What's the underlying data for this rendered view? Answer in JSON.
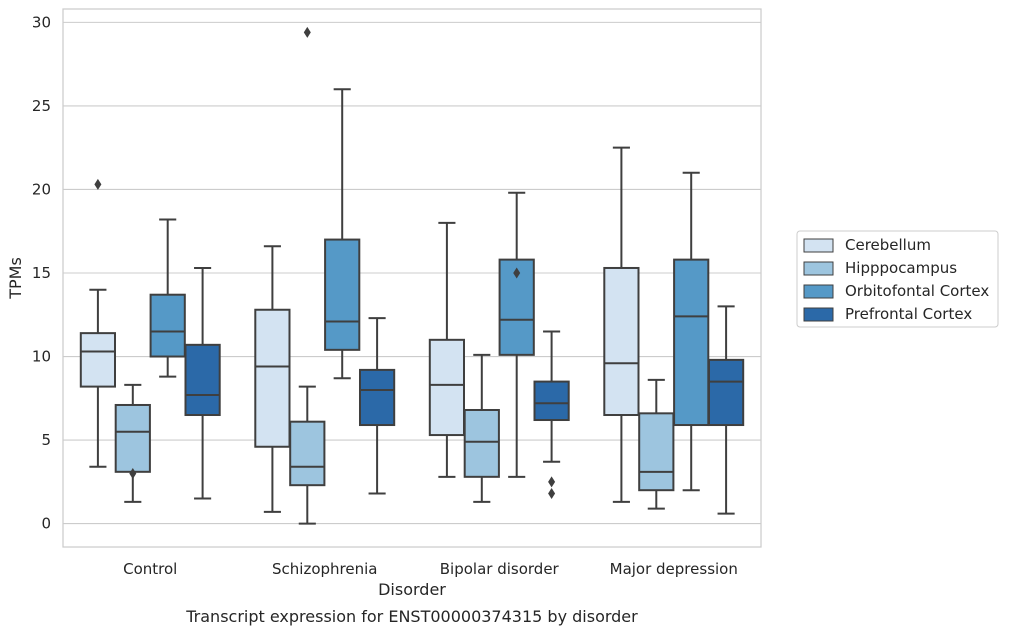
{
  "caption": "Transcript expression for ENST00000374315 by disorder",
  "chart_data": {
    "type": "box",
    "xlabel": "Disorder",
    "ylabel": "TPMs",
    "ylim": [
      -1.4,
      30.8
    ],
    "yticks": [
      0,
      5,
      10,
      15,
      20,
      25,
      30
    ],
    "grid": "horizontal",
    "legend_position": "right",
    "categories": [
      "Control",
      "Schizophrenia",
      "Bipolar disorder",
      "Major depression"
    ],
    "series": [
      {
        "name": "Cerebellum",
        "color": "#d3e3f2",
        "boxes": [
          {
            "whislo": 3.4,
            "q1": 8.2,
            "med": 10.3,
            "q3": 11.4,
            "whishi": 14.0,
            "fliers": [
              20.3
            ]
          },
          {
            "whislo": 0.7,
            "q1": 4.6,
            "med": 9.4,
            "q3": 12.8,
            "whishi": 16.6,
            "fliers": []
          },
          {
            "whislo": 2.8,
            "q1": 5.3,
            "med": 8.3,
            "q3": 11.0,
            "whishi": 18.0,
            "fliers": []
          },
          {
            "whislo": 1.3,
            "q1": 6.5,
            "med": 9.6,
            "q3": 15.3,
            "whishi": 22.5,
            "fliers": []
          }
        ]
      },
      {
        "name": "Hipppocampus",
        "color": "#9dc5df",
        "boxes": [
          {
            "whislo": 1.3,
            "q1": 3.1,
            "med": 5.5,
            "q3": 7.1,
            "whishi": 8.3,
            "fliers": [
              3.0
            ]
          },
          {
            "whislo": 0.0,
            "q1": 2.3,
            "med": 3.4,
            "q3": 6.1,
            "whishi": 8.2,
            "fliers": [
              29.4
            ]
          },
          {
            "whislo": 1.3,
            "q1": 2.8,
            "med": 4.9,
            "q3": 6.8,
            "whishi": 10.1,
            "fliers": []
          },
          {
            "whislo": 0.9,
            "q1": 2.0,
            "med": 3.1,
            "q3": 6.6,
            "whishi": 8.6,
            "fliers": []
          }
        ]
      },
      {
        "name": "Orbitofontal Cortex",
        "color": "#5599c7",
        "boxes": [
          {
            "whislo": 8.8,
            "q1": 10.0,
            "med": 11.5,
            "q3": 13.7,
            "whishi": 18.2,
            "fliers": []
          },
          {
            "whislo": 8.7,
            "q1": 10.4,
            "med": 12.1,
            "q3": 17.0,
            "whishi": 26.0,
            "fliers": []
          },
          {
            "whislo": 2.8,
            "q1": 10.1,
            "med": 12.2,
            "q3": 15.8,
            "whishi": 19.8,
            "fliers": [
              15.0
            ]
          },
          {
            "whislo": 2.0,
            "q1": 5.9,
            "med": 12.4,
            "q3": 15.8,
            "whishi": 21.0,
            "fliers": []
          }
        ]
      },
      {
        "name": "Prefrontal Cortex",
        "color": "#2b69a8",
        "boxes": [
          {
            "whislo": 1.5,
            "q1": 6.5,
            "med": 7.7,
            "q3": 10.7,
            "whishi": 15.3,
            "fliers": []
          },
          {
            "whislo": 1.8,
            "q1": 5.9,
            "med": 8.0,
            "q3": 9.2,
            "whishi": 12.3,
            "fliers": []
          },
          {
            "whislo": 3.7,
            "q1": 6.2,
            "med": 7.2,
            "q3": 8.5,
            "whishi": 11.5,
            "fliers": [
              2.5,
              1.8
            ]
          },
          {
            "whislo": 0.6,
            "q1": 5.9,
            "med": 8.5,
            "q3": 9.8,
            "whishi": 13.0,
            "fliers": []
          }
        ]
      }
    ]
  }
}
